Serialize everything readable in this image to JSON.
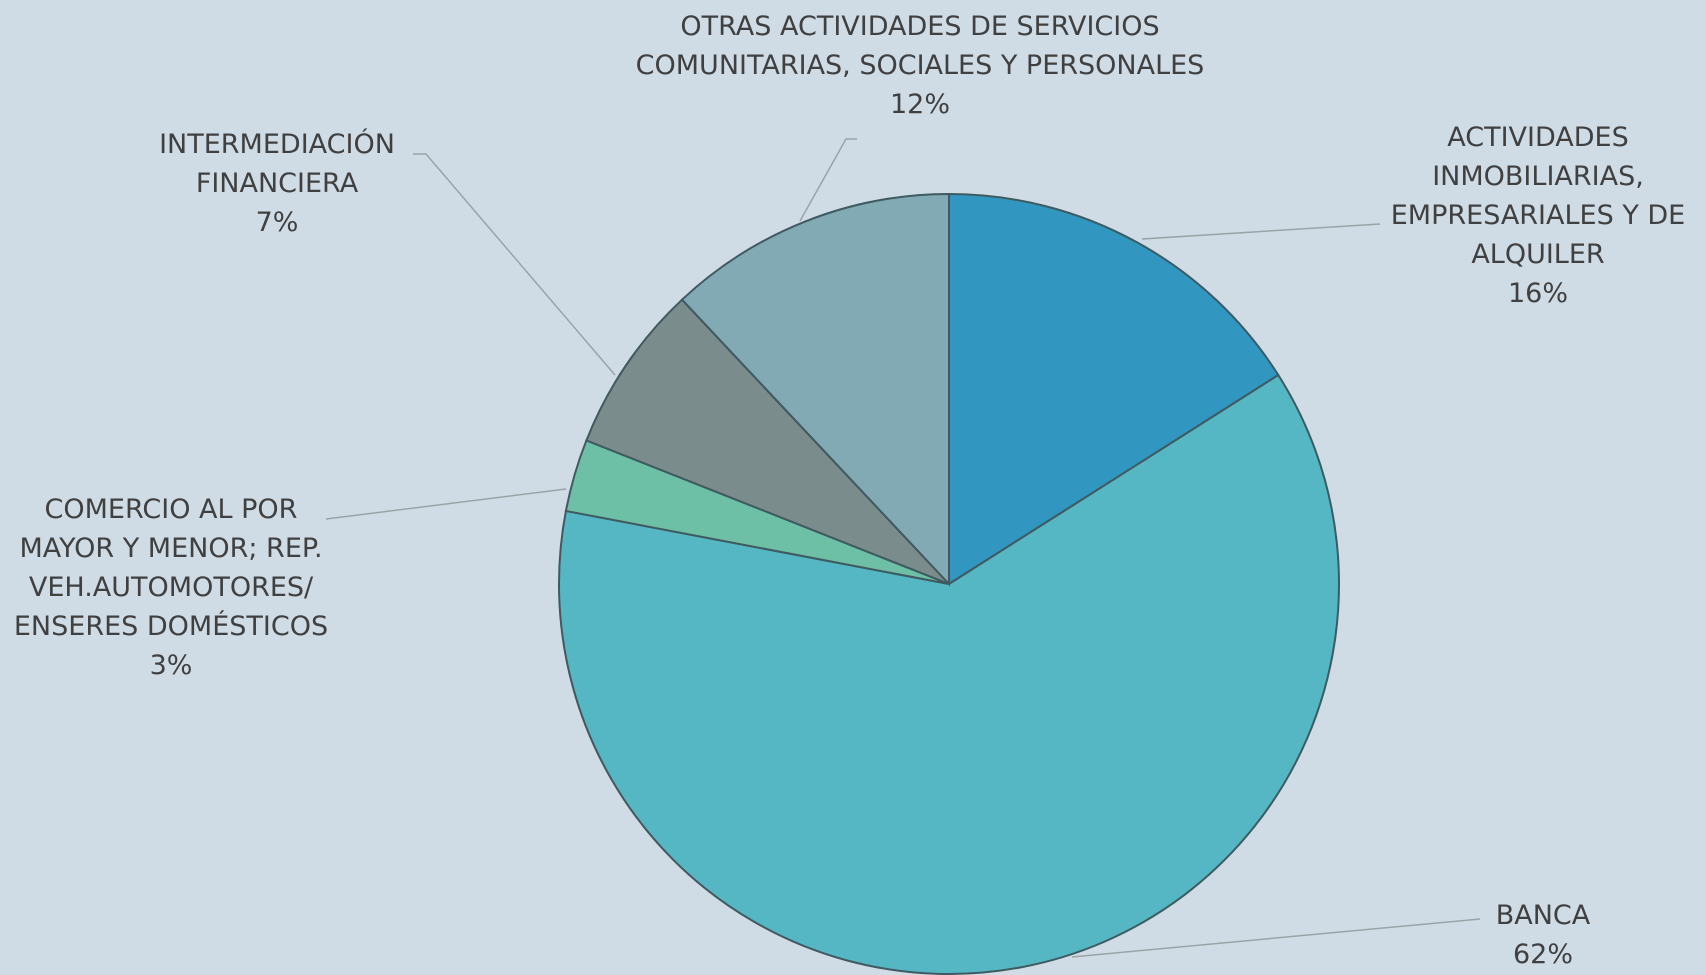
{
  "chart_data": {
    "type": "pie",
    "categories": [
      "ACTIVIDADES INMOBILIARIAS, EMPRESARIALES Y DE ALQUILER",
      "BANCA",
      "COMERCIO AL POR MAYOR Y MENOR; REP. VEH.AUTOMOTORES/ ENSERES DOMÉSTICOS",
      "INTERMEDIACIÓN FINANCIERA",
      "OTRAS ACTIVIDADES DE SERVICIOS COMUNITARIAS, SOCIALES Y PERSONALES"
    ],
    "values": [
      16,
      62,
      3,
      7,
      12
    ],
    "value_labels": [
      "16%",
      "62%",
      "3%",
      "7%",
      "12%"
    ],
    "colors": [
      "#3196c0",
      "#55b6c4",
      "#6dbfa5",
      "#7a8c8c",
      "#82aab4"
    ]
  }
}
